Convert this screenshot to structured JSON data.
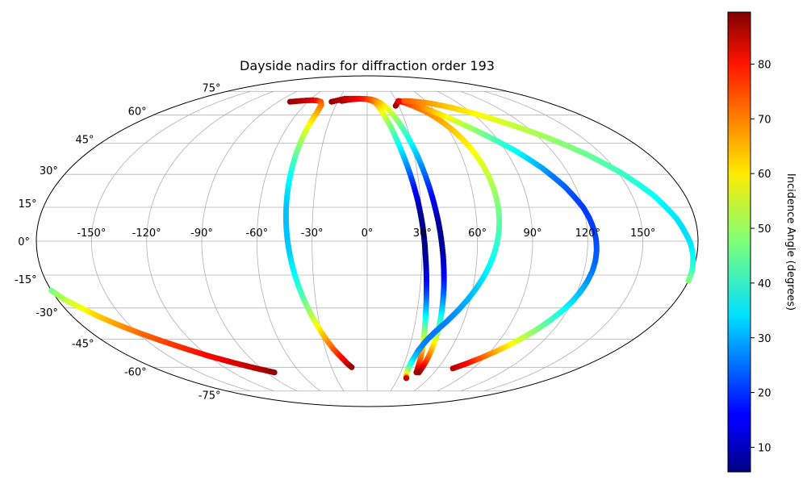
{
  "chart_data": {
    "type": "scatter",
    "projection": "mollweide",
    "title": "Dayside nadirs for diffraction order 193",
    "x_ticks": [
      "-150°",
      "-120°",
      "-90°",
      "-60°",
      "-30°",
      "0°",
      "30°",
      "60°",
      "90°",
      "120°",
      "150°"
    ],
    "y_ticks_left": [
      "75°",
      "60°",
      "45°",
      "30°",
      "15°",
      "0°",
      "-15°",
      "-30°",
      "-45°",
      "-60°",
      "-75°"
    ],
    "xlim": [
      -180,
      180
    ],
    "ylim": [
      -90,
      90
    ],
    "grid": true,
    "colorbar": {
      "label": "Incidence Angle (degrees)",
      "colormap": "jet",
      "range": [
        5.5,
        89.5
      ],
      "ticks": [
        "10",
        "20",
        "30",
        "40",
        "50",
        "60",
        "70",
        "80"
      ]
    },
    "series": [
      {
        "points": [
          [
            -78,
            68,
            88
          ],
          [
            -70,
            68.5,
            86
          ],
          [
            -64,
            68.8,
            84
          ],
          [
            -58,
            69,
            82
          ],
          [
            -52,
            68.8,
            78
          ],
          [
            -47,
            68,
            73
          ],
          [
            -44,
            66,
            70
          ],
          [
            -43.5,
            62,
            66
          ],
          [
            -44,
            58,
            62
          ],
          [
            -44.5,
            54,
            58
          ],
          [
            -45,
            50,
            54
          ],
          [
            -45.3,
            45,
            50
          ],
          [
            -45.5,
            40,
            46
          ],
          [
            -45.6,
            35,
            42
          ],
          [
            -45.6,
            30,
            38
          ],
          [
            -45.5,
            25,
            36
          ],
          [
            -45.3,
            20,
            34
          ],
          [
            -45,
            15,
            32
          ],
          [
            -44.6,
            10,
            32
          ],
          [
            -44,
            5,
            32
          ],
          [
            -43.3,
            0,
            32
          ],
          [
            -42.4,
            -5,
            33
          ],
          [
            -41.4,
            -10,
            35
          ],
          [
            -40.2,
            -15,
            37
          ],
          [
            -38.8,
            -20,
            40
          ],
          [
            -37.2,
            -25,
            44
          ],
          [
            -35.3,
            -30,
            48
          ],
          [
            -33.2,
            -35,
            53
          ],
          [
            -30.7,
            -40,
            59
          ],
          [
            -27.8,
            -45,
            65
          ],
          [
            -24.3,
            -50,
            71
          ],
          [
            -20.3,
            -54,
            77
          ],
          [
            -16,
            -58,
            83
          ],
          [
            -13,
            -60,
            88
          ]
        ]
      },
      {
        "points": [
          [
            -36,
            68,
            88
          ],
          [
            -30,
            69,
            86
          ],
          [
            -24,
            70,
            84
          ],
          [
            -16,
            70,
            82
          ],
          [
            -8,
            70,
            80
          ],
          [
            0,
            69.6,
            76
          ],
          [
            4,
            68.8,
            72
          ],
          [
            8,
            67.5,
            68
          ],
          [
            10.4,
            65.5,
            64
          ],
          [
            12.4,
            63,
            60
          ],
          [
            14.2,
            60,
            56
          ],
          [
            16,
            57,
            52
          ],
          [
            17.6,
            54,
            48
          ],
          [
            19.2,
            50,
            44
          ],
          [
            20.6,
            46,
            40
          ],
          [
            22,
            42,
            36
          ],
          [
            23.3,
            38,
            32
          ],
          [
            24.5,
            34,
            28
          ],
          [
            25.6,
            30,
            24
          ],
          [
            26.6,
            26,
            20
          ],
          [
            27.5,
            22,
            16
          ],
          [
            28.4,
            18,
            12
          ],
          [
            29.1,
            14,
            9
          ],
          [
            29.8,
            10,
            7
          ],
          [
            30.4,
            6,
            6
          ],
          [
            30.9,
            2,
            6
          ],
          [
            31.4,
            -2,
            6
          ],
          [
            31.8,
            -6,
            7
          ],
          [
            32.3,
            -10,
            9
          ],
          [
            32.8,
            -14,
            12
          ],
          [
            33.3,
            -18,
            16
          ],
          [
            33.8,
            -22,
            20
          ],
          [
            34.4,
            -26,
            25
          ],
          [
            35,
            -30,
            30
          ],
          [
            35.7,
            -34,
            36
          ],
          [
            36.5,
            -38,
            42
          ],
          [
            37.4,
            -42,
            48
          ],
          [
            38.4,
            -46,
            55
          ],
          [
            39.6,
            -50,
            62
          ],
          [
            40.8,
            -54,
            68
          ],
          [
            42,
            -58,
            74
          ],
          [
            43.2,
            -61,
            80
          ],
          [
            44,
            -63,
            86
          ]
        ]
      },
      {
        "points": [
          [
            -26,
            68.5,
            86
          ],
          [
            -18,
            69.4,
            83
          ],
          [
            -10,
            69.8,
            80
          ],
          [
            -2,
            69.9,
            76
          ],
          [
            4,
            69.5,
            72
          ],
          [
            9,
            68.6,
            68
          ],
          [
            13,
            67.2,
            64
          ],
          [
            16.6,
            65.2,
            60
          ],
          [
            19.6,
            62.7,
            56
          ],
          [
            22.3,
            59.6,
            52
          ],
          [
            24.6,
            56.1,
            48
          ],
          [
            26.7,
            52.2,
            44
          ],
          [
            28.6,
            48,
            40
          ],
          [
            30.3,
            43.5,
            36
          ],
          [
            31.9,
            38.8,
            32
          ],
          [
            33.3,
            34,
            28
          ],
          [
            34.6,
            29,
            24
          ],
          [
            35.8,
            24,
            20
          ],
          [
            36.9,
            19,
            16
          ],
          [
            37.9,
            14,
            12
          ],
          [
            38.9,
            9,
            9
          ],
          [
            39.8,
            4,
            7
          ],
          [
            40.6,
            -1,
            7
          ],
          [
            41.4,
            -6,
            9
          ],
          [
            42.1,
            -11,
            12
          ],
          [
            42.8,
            -16,
            16
          ],
          [
            43.5,
            -21,
            21
          ],
          [
            44.1,
            -26,
            27
          ],
          [
            44.7,
            -31,
            33
          ],
          [
            45.3,
            -36,
            40
          ],
          [
            45.8,
            -41,
            48
          ],
          [
            46.2,
            -46,
            56
          ],
          [
            46.5,
            -51,
            64
          ],
          [
            46.6,
            -56,
            72
          ],
          [
            46.5,
            -60,
            80
          ],
          [
            46.2,
            -63,
            88
          ]
        ]
      },
      {
        "points": [
          [
            32,
            68.5,
            75
          ],
          [
            38,
            67.2,
            73
          ],
          [
            44,
            65.2,
            71
          ],
          [
            50,
            62.7,
            69
          ],
          [
            55,
            59.6,
            67
          ],
          [
            59,
            56.1,
            65
          ],
          [
            62.5,
            52.2,
            63
          ],
          [
            65.4,
            48,
            61
          ],
          [
            67.7,
            43.5,
            59
          ],
          [
            69.5,
            38.8,
            57
          ],
          [
            70.9,
            34,
            55
          ],
          [
            71.9,
            29,
            53
          ],
          [
            72.5,
            24,
            51
          ],
          [
            72.8,
            19,
            49
          ],
          [
            72.8,
            14,
            47
          ],
          [
            72.4,
            9,
            45
          ],
          [
            71.7,
            4,
            43
          ],
          [
            70.6,
            -1,
            41
          ],
          [
            69.1,
            -6,
            39
          ],
          [
            67.2,
            -11,
            37
          ],
          [
            64.8,
            -16,
            35
          ],
          [
            61.9,
            -21,
            33
          ],
          [
            58.5,
            -26,
            31
          ],
          [
            54.5,
            -31,
            29
          ],
          [
            49.9,
            -36,
            27
          ],
          [
            44.6,
            -41,
            26
          ],
          [
            40,
            -46,
            26
          ],
          [
            37,
            -51,
            28
          ],
          [
            35.5,
            -56,
            34
          ],
          [
            35,
            -60,
            42
          ],
          [
            35.5,
            -63,
            52
          ],
          [
            36.5,
            -65,
            62
          ],
          [
            37.5,
            -66,
            72
          ],
          [
            38,
            -66.5,
            84
          ]
        ]
      },
      {
        "points": [
          [
            27,
            65.5,
            88
          ],
          [
            32,
            68.5,
            82
          ],
          [
            37,
            68,
            78
          ],
          [
            42,
            67,
            74
          ],
          [
            48,
            65.5,
            70
          ],
          [
            54,
            63.5,
            66
          ],
          [
            60,
            61.2,
            62
          ],
          [
            66,
            58.6,
            58
          ],
          [
            72,
            55.7,
            54
          ],
          [
            78,
            52.5,
            50
          ],
          [
            84,
            49.1,
            46
          ],
          [
            90,
            45.4,
            42
          ],
          [
            96,
            41.5,
            38
          ],
          [
            101,
            37.4,
            34
          ],
          [
            106,
            33.1,
            30
          ],
          [
            110,
            28.7,
            26
          ],
          [
            114,
            24.2,
            24
          ],
          [
            117,
            19.6,
            22
          ],
          [
            120,
            15,
            21
          ],
          [
            122,
            10.3,
            21
          ],
          [
            123.5,
            5.5,
            21
          ],
          [
            124.5,
            0.8,
            22
          ],
          [
            125,
            -4,
            23
          ],
          [
            125,
            -8.7,
            24
          ],
          [
            124.5,
            -13.4,
            26
          ],
          [
            123.4,
            -18,
            28
          ],
          [
            121.8,
            -22.6,
            31
          ],
          [
            119.6,
            -27.1,
            34
          ],
          [
            116.8,
            -31.5,
            38
          ],
          [
            113.4,
            -35.8,
            42
          ],
          [
            109.4,
            -40,
            47
          ],
          [
            104.8,
            -44,
            52
          ],
          [
            99.6,
            -47.8,
            58
          ],
          [
            93.8,
            -51.4,
            64
          ],
          [
            87.4,
            -54.8,
            71
          ],
          [
            80.4,
            -57.9,
            78
          ],
          [
            73,
            -60.7,
            85
          ]
        ]
      },
      {
        "points": [
          [
            38,
            68.5,
            72
          ],
          [
            46,
            68.3,
            70
          ],
          [
            54,
            67.8,
            68
          ],
          [
            62,
            67,
            66
          ],
          [
            70,
            65.8,
            64
          ],
          [
            78,
            64.3,
            62
          ],
          [
            86,
            62.4,
            60
          ],
          [
            94,
            60.2,
            58
          ],
          [
            102,
            57.6,
            56
          ],
          [
            110,
            54.7,
            54
          ],
          [
            118,
            51.4,
            52
          ],
          [
            126,
            47.8,
            50
          ],
          [
            133,
            43.9,
            48
          ],
          [
            140,
            39.7,
            46
          ],
          [
            146,
            35.2,
            44
          ],
          [
            152,
            30.5,
            42
          ],
          [
            157,
            25.6,
            40
          ],
          [
            162,
            20.5,
            38
          ],
          [
            166,
            15.2,
            36
          ],
          [
            170,
            9.8,
            35
          ],
          [
            173,
            4.3,
            34
          ],
          [
            176,
            -1.2,
            35
          ],
          [
            178,
            -6.7,
            37
          ],
          [
            179.5,
            -12.2,
            41
          ],
          [
            180,
            -17.5,
            47
          ]
        ]
      },
      {
        "points": [
          [
            -180,
            -22,
            47
          ],
          [
            -176,
            -26,
            52
          ],
          [
            -170,
            -30,
            57
          ],
          [
            -164,
            -34,
            62
          ],
          [
            -157,
            -38,
            66
          ],
          [
            -149,
            -42,
            70
          ],
          [
            -140,
            -46,
            73
          ],
          [
            -130,
            -50,
            76
          ],
          [
            -119,
            -54,
            79
          ],
          [
            -107,
            -57.5,
            82
          ],
          [
            -95,
            -60.5,
            85
          ],
          [
            -83,
            -63,
            88
          ]
        ]
      }
    ]
  }
}
